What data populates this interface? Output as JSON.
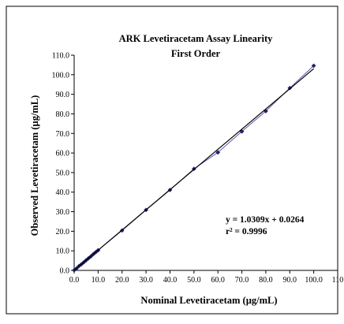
{
  "chart_data": {
    "type": "scatter",
    "title": "ARK Levetiracetam Assay Linearity",
    "subtitle": "First Order",
    "xlabel": "Nominal Levetiracetam (µg/mL)",
    "ylabel": "Observed Levetiracetam (µg/mL)",
    "xlim": [
      0,
      110
    ],
    "ylim": [
      0,
      110
    ],
    "x_ticks": [
      "0.0",
      "10.0",
      "20.0",
      "30.0",
      "40.0",
      "50.0",
      "60.0",
      "70.0",
      "80.0",
      "90.0",
      "100.0",
      "110"
    ],
    "y_ticks": [
      "0.0",
      "10.0",
      "20.0",
      "30.0",
      "40.0",
      "50.0",
      "60.0",
      "70.0",
      "80.0",
      "90.0",
      "100.0",
      "110.0"
    ],
    "grid": false,
    "legend": "none",
    "series": [
      {
        "color": "#1f1f6b",
        "x": [
          0,
          1,
          2,
          3,
          4,
          5,
          6,
          7,
          8,
          9,
          10,
          20,
          30,
          40,
          50,
          60,
          70,
          80,
          90,
          100
        ],
        "y": [
          0.1,
          1.0,
          2.2,
          3.1,
          4.1,
          5.2,
          6.2,
          7.2,
          8.3,
          9.3,
          10.3,
          20.4,
          30.9,
          41.1,
          51.9,
          60.3,
          71.0,
          81.4,
          93.2,
          104.6
        ]
      }
    ],
    "trendline": {
      "slope": 1.0309,
      "intercept": 0.0264,
      "equation": "y = 1.0309x + 0.0264",
      "r_squared": "r² = 0.9996",
      "color": "#000000"
    }
  }
}
